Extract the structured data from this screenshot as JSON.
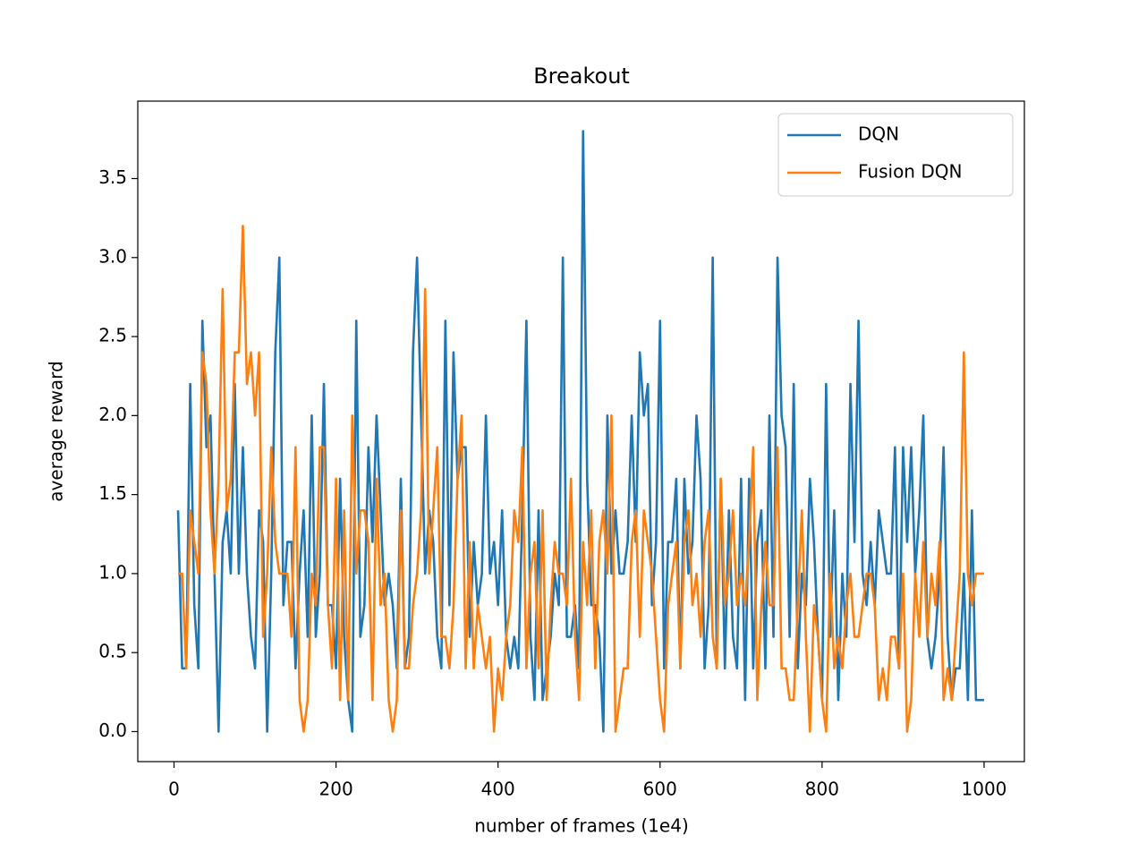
{
  "chart_data": {
    "type": "line",
    "title": "Breakout",
    "xlabel": "number of frames (1e4)",
    "ylabel": "average reward",
    "x": [
      5,
      10,
      15,
      20,
      25,
      30,
      35,
      40,
      45,
      50,
      55,
      60,
      65,
      70,
      75,
      80,
      85,
      90,
      95,
      100,
      105,
      110,
      115,
      120,
      125,
      130,
      135,
      140,
      145,
      150,
      155,
      160,
      165,
      170,
      175,
      180,
      185,
      190,
      195,
      200,
      205,
      210,
      215,
      220,
      225,
      230,
      235,
      240,
      245,
      250,
      255,
      260,
      265,
      270,
      275,
      280,
      285,
      290,
      295,
      300,
      305,
      310,
      315,
      320,
      325,
      330,
      335,
      340,
      345,
      350,
      355,
      360,
      365,
      370,
      375,
      380,
      385,
      390,
      395,
      400,
      405,
      410,
      415,
      420,
      425,
      430,
      435,
      440,
      445,
      450,
      455,
      460,
      465,
      470,
      475,
      480,
      485,
      490,
      495,
      500,
      505,
      510,
      515,
      520,
      525,
      530,
      535,
      540,
      545,
      550,
      555,
      560,
      565,
      570,
      575,
      580,
      585,
      590,
      595,
      600,
      605,
      610,
      615,
      620,
      625,
      630,
      635,
      640,
      645,
      650,
      655,
      660,
      665,
      670,
      675,
      680,
      685,
      690,
      695,
      700,
      705,
      710,
      715,
      720,
      725,
      730,
      735,
      740,
      745,
      750,
      755,
      760,
      765,
      770,
      775,
      780,
      785,
      790,
      795,
      800,
      805,
      810,
      815,
      820,
      825,
      830,
      835,
      840,
      845,
      850,
      855,
      860,
      865,
      870,
      875,
      880,
      885,
      890,
      895,
      900,
      905,
      910,
      915,
      920,
      925,
      930,
      935,
      940,
      945,
      950,
      955,
      960,
      965,
      970,
      975,
      980,
      985,
      990,
      995,
      1000
    ],
    "series": [
      {
        "name": "DQN",
        "color": "#1f77b4",
        "values": [
          1.4,
          0.4,
          0.4,
          2.2,
          0.8,
          0.4,
          2.6,
          1.8,
          2.0,
          1.0,
          0,
          1.2,
          1.4,
          1.0,
          2.2,
          1.0,
          1.8,
          1.0,
          0.6,
          0.4,
          1.4,
          1.2,
          0,
          1.0,
          2.4,
          3.0,
          0.8,
          1.2,
          1.2,
          0.4,
          1.0,
          1.4,
          0.6,
          2.0,
          0.6,
          1.0,
          2.2,
          0.8,
          0.8,
          0.4,
          1.6,
          0.6,
          0.2,
          0,
          2.6,
          0.6,
          0.8,
          1.8,
          1.2,
          2.0,
          1.4,
          0.8,
          1.0,
          0.8,
          0.4,
          1.6,
          0.4,
          0.6,
          2.4,
          3.0,
          2.0,
          1.0,
          1.4,
          1.2,
          0.6,
          0.4,
          2.6,
          0.8,
          2.4,
          1.6,
          1.8,
          1.8,
          0.6,
          1.2,
          0.8,
          1.0,
          2.0,
          1.0,
          1.2,
          0.8,
          1.4,
          0.6,
          0.4,
          0.6,
          0.4,
          1.4,
          2.6,
          0.6,
          0.2,
          1.4,
          0.2,
          0.4,
          0.6,
          1.0,
          0.8,
          3.0,
          0.6,
          0.6,
          0.8,
          0.4,
          3.8,
          1.6,
          0.8,
          0.8,
          0.6,
          0,
          2.0,
          1.0,
          1.4,
          1.0,
          1.0,
          1.2,
          2.0,
          1.2,
          2.4,
          2.0,
          2.2,
          0.8,
          1.2,
          2.6,
          0.4,
          1.2,
          1.2,
          1.6,
          0.4,
          1.6,
          1.0,
          1.2,
          2.0,
          1.6,
          0.4,
          0.8,
          3.0,
          0.4,
          1.6,
          0.4,
          1.4,
          0.6,
          0.4,
          1.6,
          0.2,
          1.6,
          0.4,
          1.2,
          1.4,
          0.4,
          2.0,
          0.6,
          3.0,
          2.0,
          1.8,
          0.6,
          2.2,
          0.4,
          1.0,
          0.8,
          1.6,
          1.2,
          0.6,
          0.2,
          2.2,
          0.6,
          1.4,
          0.2,
          1.0,
          0.6,
          2.2,
          1.2,
          2.6,
          1.0,
          0.8,
          1.2,
          0.8,
          1.4,
          1.2,
          1.0,
          1.0,
          1.8,
          0.4,
          1.8,
          1.2,
          1.8,
          1.0,
          1.4,
          2.0,
          0.6,
          0.4,
          0.6,
          1.0,
          1.8,
          0.6,
          0.2,
          0.4,
          0.4,
          1.0,
          0.2,
          1.4,
          0.2,
          0.2,
          0.2
        ]
      },
      {
        "name": "Fusion DQN",
        "color": "#ff7f0e",
        "values": [
          1.0,
          1.0,
          0.4,
          1.4,
          1.2,
          1.0,
          2.4,
          2.2,
          1.4,
          1.0,
          1.6,
          2.8,
          1.4,
          1.6,
          2.4,
          2.4,
          3.2,
          2.2,
          2.4,
          2.0,
          2.4,
          0.6,
          1.0,
          1.8,
          1.2,
          1.0,
          1.0,
          1.0,
          0.6,
          1.8,
          0.2,
          0,
          0.2,
          1.0,
          0.8,
          1.8,
          1.8,
          0.8,
          0.4,
          1.6,
          0.2,
          1.4,
          0.2,
          2.0,
          1.0,
          1.4,
          1.4,
          1.2,
          0.2,
          1.6,
          0.8,
          1.0,
          0.2,
          0,
          0.2,
          1.4,
          0.4,
          0.4,
          0.8,
          1.0,
          1.4,
          2.8,
          1.0,
          1.4,
          1.8,
          0.6,
          0.6,
          0.4,
          0.8,
          1.6,
          2.0,
          0.4,
          1.2,
          0.4,
          0.8,
          0.6,
          0.4,
          0.6,
          0,
          0.4,
          0.2,
          0.6,
          0.8,
          1.4,
          1.2,
          1.8,
          0.4,
          1.0,
          1.2,
          0.4,
          1.4,
          0.2,
          0.8,
          1.2,
          1.0,
          1.0,
          0.8,
          1.6,
          0.6,
          0.2,
          1.2,
          0.8,
          1.4,
          0.4,
          1.2,
          1.4,
          1.0,
          2.0,
          0,
          0.2,
          0.4,
          0.4,
          1.2,
          1.4,
          0.6,
          1.4,
          1.2,
          1.0,
          0.6,
          0.2,
          0,
          0.8,
          1.0,
          1.2,
          0.4,
          1.2,
          1.4,
          0.8,
          1.0,
          0.6,
          1.2,
          1.4,
          0.6,
          0.4,
          1.6,
          0.8,
          1.0,
          1.4,
          0.8,
          1.0,
          0.8,
          1.2,
          1.8,
          0.2,
          0.8,
          1.2,
          0.8,
          0.8,
          1.8,
          0.4,
          0.4,
          0.2,
          0.2,
          0.8,
          1.4,
          0.6,
          0,
          0.8,
          0.6,
          0.2,
          0,
          1.0,
          0.4,
          0.6,
          0.4,
          0.8,
          1.0,
          0.6,
          0.6,
          0.8,
          1.0,
          1.0,
          0.8,
          0.2,
          0.4,
          0.2,
          0.6,
          0.6,
          0.4,
          1.0,
          0,
          0.2,
          1.0,
          0.6,
          1.2,
          0.6,
          1.0,
          0.8,
          1.2,
          0.2,
          0.4,
          0.2,
          0.6,
          1.0,
          2.4,
          1.0,
          0.8,
          1.0,
          1.0,
          1.0
        ]
      }
    ],
    "xlim": [
      -44.75,
      1049.75
    ],
    "ylim": [
      -0.19,
      3.99
    ],
    "xticks": [
      0,
      200,
      400,
      600,
      800,
      1000
    ],
    "yticks": [
      {
        "value": 0,
        "label": "0.0"
      },
      0.5,
      {
        "value": 1,
        "label": "1.0"
      },
      1.5,
      {
        "value": 2,
        "label": "2.0"
      },
      2.5,
      {
        "value": 3,
        "label": "3.0"
      },
      3.5
    ],
    "legend": "upper right"
  }
}
